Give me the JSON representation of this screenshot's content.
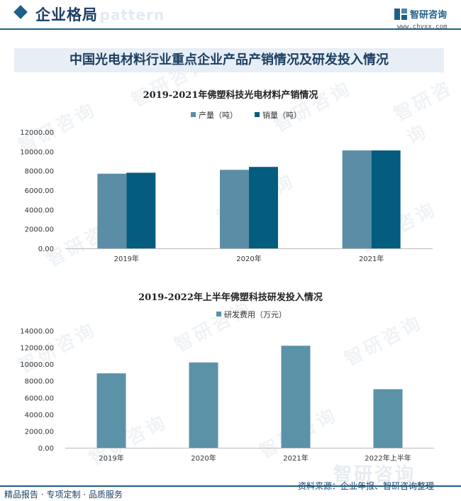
{
  "header": {
    "title": "企业格局",
    "ghost_text": "e pattern",
    "logo_text": "智研咨询",
    "logo_url": "www.chyxx.com"
  },
  "banner": {
    "title": "中国光电材料行业重点企业产品产销情况及研发投入情况"
  },
  "watermark": "智研咨询",
  "colors": {
    "production": "#5b8ea6",
    "sales": "#045c7e",
    "rd": "#5b92a8",
    "navy": "#1c3f63",
    "banner_bg": "#e7eef5"
  },
  "chart_data": [
    {
      "type": "bar",
      "title": "2019-2021年佛塑科技光电材料产销情况",
      "categories": [
        "2019年",
        "2020年",
        "2021年"
      ],
      "series": [
        {
          "name": "产量（吨）",
          "values": [
            7700,
            8100,
            10100
          ]
        },
        {
          "name": "销量（吨）",
          "values": [
            7800,
            8400,
            10100
          ]
        }
      ],
      "yticks": [
        "0.00",
        "2000.00",
        "4000.00",
        "6000.00",
        "8000.00",
        "10000.00",
        "12000.00"
      ],
      "ylim": [
        0,
        12000
      ],
      "legend": "top-center",
      "grid": false
    },
    {
      "type": "bar",
      "title": "2019-2022年上半年佛塑科技研发投入情况",
      "categories": [
        "2019年",
        "2020年",
        "2021年",
        "2022年上半年"
      ],
      "series": [
        {
          "name": "研发费用（万元）",
          "values": [
            8900,
            10200,
            12200,
            7000
          ]
        }
      ],
      "yticks": [
        "0.00",
        "2000.00",
        "4000.00",
        "6000.00",
        "8000.00",
        "10000.00",
        "12000.00",
        "14000.00"
      ],
      "ylim": [
        0,
        14000
      ],
      "legend": "top-center",
      "grid": false
    }
  ],
  "footer": {
    "left": "精品报告 · 专项定制 · 品质服务",
    "right": "资料来源：企业年报、智研咨询整理"
  }
}
